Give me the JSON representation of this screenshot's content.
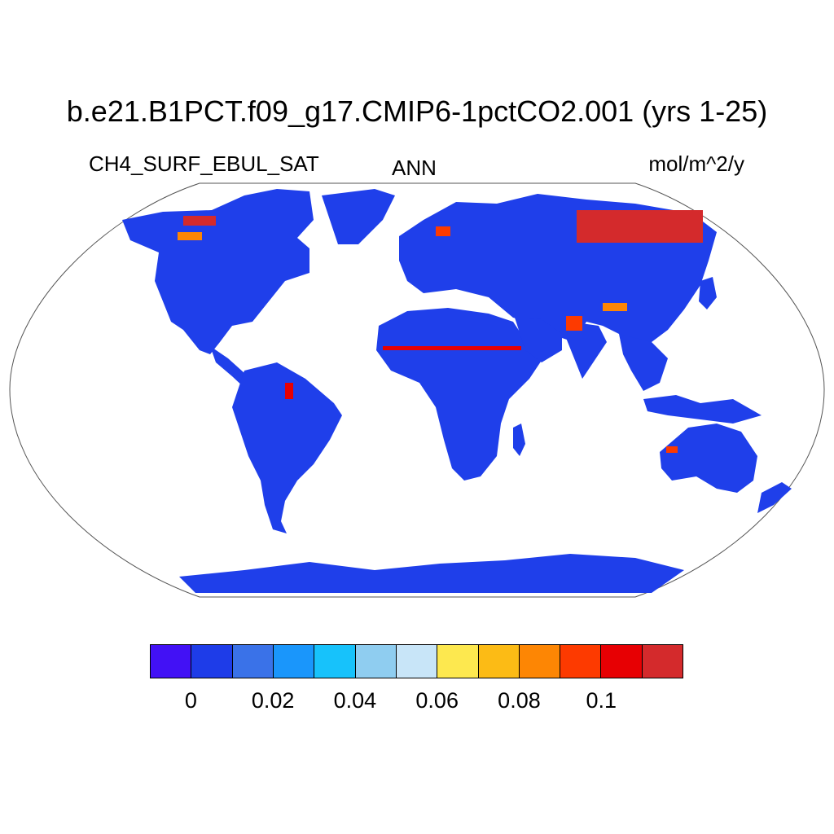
{
  "title": "b.e21.B1PCT.f09_g17.CMIP6-1pctCO2.001 (yrs 1-25)",
  "variable": "CH4_SURF_EBUL_SAT",
  "season": "ANN",
  "units": "mol/m^2/y",
  "colors": {
    "land_base": "#1f3fea",
    "ocean": "#ffffff",
    "outline": "#000000"
  },
  "colorbar": {
    "colors": [
      "#4211f5",
      "#1e3ce8",
      "#3a72e8",
      "#1a96fb",
      "#17c2fb",
      "#8fcdf0",
      "#c8e5f8",
      "#fde84f",
      "#fcbb15",
      "#fd8604",
      "#fd3a00",
      "#e70003",
      "#d42a2c"
    ],
    "labels": [
      "0",
      "0.02",
      "0.04",
      "0.06",
      "0.08",
      "0.1"
    ]
  }
}
